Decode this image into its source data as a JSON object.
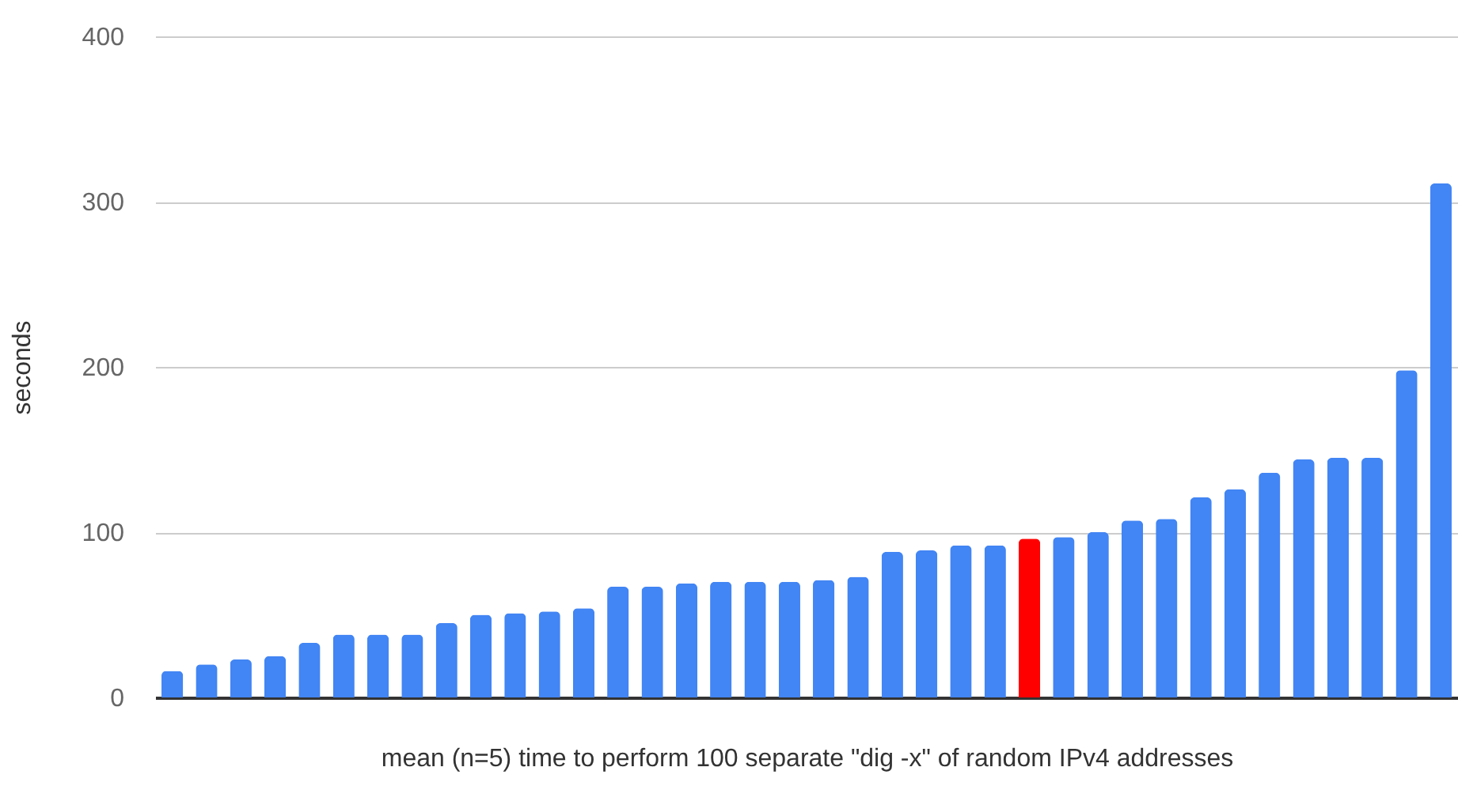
{
  "chart_data": {
    "type": "bar",
    "xlabel": "mean (n=5) time to perform 100 separate \"dig -x\" of random IPv4 addresses",
    "ylabel": "seconds",
    "categories": [
      null,
      null,
      null,
      null,
      null,
      null,
      null,
      null,
      null,
      null,
      null,
      null,
      null,
      null,
      null,
      null,
      null,
      null,
      null,
      null,
      null,
      null,
      null,
      null,
      null,
      null,
      null,
      null,
      null,
      null,
      null,
      null,
      null,
      null,
      null,
      null,
      null,
      null
    ],
    "values": [
      16,
      20,
      23,
      25,
      33,
      38,
      38,
      38,
      45,
      50,
      51,
      52,
      54,
      67,
      67,
      69,
      70,
      70,
      70,
      71,
      73,
      88,
      89,
      92,
      92,
      96,
      97,
      100,
      107,
      108,
      121,
      126,
      136,
      144,
      145,
      145,
      198,
      311
    ],
    "colors": [
      "#4285f4",
      "#4285f4",
      "#4285f4",
      "#4285f4",
      "#4285f4",
      "#4285f4",
      "#4285f4",
      "#4285f4",
      "#4285f4",
      "#4285f4",
      "#4285f4",
      "#4285f4",
      "#4285f4",
      "#4285f4",
      "#4285f4",
      "#4285f4",
      "#4285f4",
      "#4285f4",
      "#4285f4",
      "#4285f4",
      "#4285f4",
      "#4285f4",
      "#4285f4",
      "#4285f4",
      "#4285f4",
      "#ff0000",
      "#4285f4",
      "#4285f4",
      "#4285f4",
      "#4285f4",
      "#4285f4",
      "#4285f4",
      "#4285f4",
      "#4285f4",
      "#4285f4",
      "#4285f4",
      "#4285f4",
      "#4285f4"
    ],
    "ylim": [
      0,
      400
    ],
    "yticks": [
      0,
      100,
      200,
      300,
      400
    ],
    "grid": "y",
    "tick_labels": "y"
  }
}
